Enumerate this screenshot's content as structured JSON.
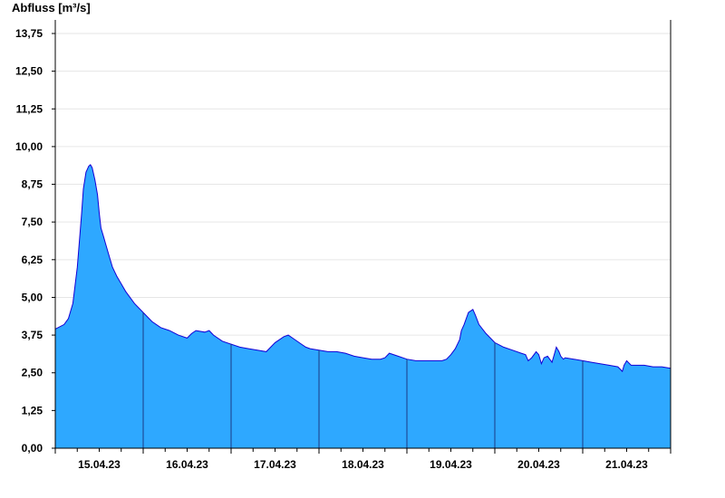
{
  "colors": {
    "area_fill": "#2ea8ff",
    "area_line": "#1400d6",
    "day_divider": "#1b3a86",
    "grid": "#e6e6e6",
    "axis": "#000000"
  },
  "chart_data": {
    "type": "area",
    "ylabel": "Abfluss [m³/s]",
    "ylim": [
      0,
      14.2
    ],
    "yticks": [
      0,
      1.25,
      2.5,
      3.75,
      5.0,
      6.25,
      7.5,
      8.75,
      10.0,
      11.25,
      12.5,
      13.75
    ],
    "ytick_labels": [
      "0,00",
      "1,25",
      "2,50",
      "3,75",
      "5,00",
      "6,25",
      "7,50",
      "8,75",
      "10,00",
      "11,25",
      "12,50",
      "13,75"
    ],
    "xlim": [
      0,
      7
    ],
    "x_unit": "days since 14.04.23 12:00",
    "xtick_labels": [
      "15.04.23",
      "16.04.23",
      "17.04.23",
      "18.04.23",
      "19.04.23",
      "20.04.23",
      "21.04.23"
    ],
    "xtick_positions": [
      0.5,
      1.5,
      2.5,
      3.5,
      4.5,
      5.5,
      6.5
    ],
    "day_dividers": [
      1,
      2,
      3,
      4,
      5,
      6
    ],
    "grid": "horizontal",
    "series": [
      {
        "name": "Abfluss",
        "x": [
          0.0,
          0.1,
          0.15,
          0.2,
          0.25,
          0.3,
          0.32,
          0.35,
          0.38,
          0.4,
          0.42,
          0.45,
          0.48,
          0.5,
          0.52,
          0.55,
          0.57,
          0.6,
          0.65,
          0.7,
          0.75,
          0.8,
          0.9,
          1.0,
          1.1,
          1.2,
          1.3,
          1.4,
          1.5,
          1.55,
          1.6,
          1.7,
          1.75,
          1.8,
          1.9,
          2.0,
          2.1,
          2.2,
          2.3,
          2.4,
          2.5,
          2.6,
          2.65,
          2.7,
          2.8,
          2.85,
          2.9,
          3.0,
          3.1,
          3.2,
          3.3,
          3.4,
          3.5,
          3.6,
          3.7,
          3.75,
          3.8,
          3.9,
          4.0,
          4.1,
          4.2,
          4.3,
          4.4,
          4.45,
          4.5,
          4.55,
          4.6,
          4.62,
          4.65,
          4.7,
          4.75,
          4.78,
          4.82,
          4.9,
          5.0,
          5.1,
          5.2,
          5.3,
          5.35,
          5.38,
          5.42,
          5.47,
          5.5,
          5.53,
          5.56,
          5.6,
          5.65,
          5.68,
          5.7,
          5.73,
          5.75,
          5.78,
          5.8,
          5.9,
          6.0,
          6.1,
          6.2,
          6.3,
          6.4,
          6.45,
          6.47,
          6.5,
          6.55,
          6.6,
          6.7,
          6.8,
          6.9,
          7.0
        ],
        "values": [
          3.95,
          4.1,
          4.3,
          4.8,
          6.0,
          7.8,
          8.6,
          9.15,
          9.35,
          9.4,
          9.3,
          8.9,
          8.4,
          7.8,
          7.3,
          7.0,
          6.8,
          6.5,
          6.0,
          5.7,
          5.45,
          5.2,
          4.8,
          4.5,
          4.2,
          4.0,
          3.9,
          3.75,
          3.65,
          3.8,
          3.9,
          3.85,
          3.9,
          3.75,
          3.55,
          3.45,
          3.35,
          3.3,
          3.25,
          3.2,
          3.5,
          3.7,
          3.75,
          3.65,
          3.45,
          3.35,
          3.3,
          3.25,
          3.2,
          3.2,
          3.15,
          3.05,
          3.0,
          2.95,
          2.95,
          3.0,
          3.15,
          3.05,
          2.95,
          2.9,
          2.9,
          2.9,
          2.9,
          2.95,
          3.1,
          3.3,
          3.6,
          3.9,
          4.1,
          4.5,
          4.6,
          4.4,
          4.1,
          3.8,
          3.5,
          3.35,
          3.25,
          3.15,
          3.1,
          2.9,
          3.0,
          3.2,
          3.1,
          2.8,
          3.0,
          3.05,
          2.85,
          3.15,
          3.35,
          3.2,
          3.05,
          2.95,
          3.0,
          2.95,
          2.9,
          2.85,
          2.8,
          2.75,
          2.7,
          2.55,
          2.75,
          2.9,
          2.75,
          2.75,
          2.75,
          2.7,
          2.7,
          2.65
        ]
      }
    ]
  }
}
